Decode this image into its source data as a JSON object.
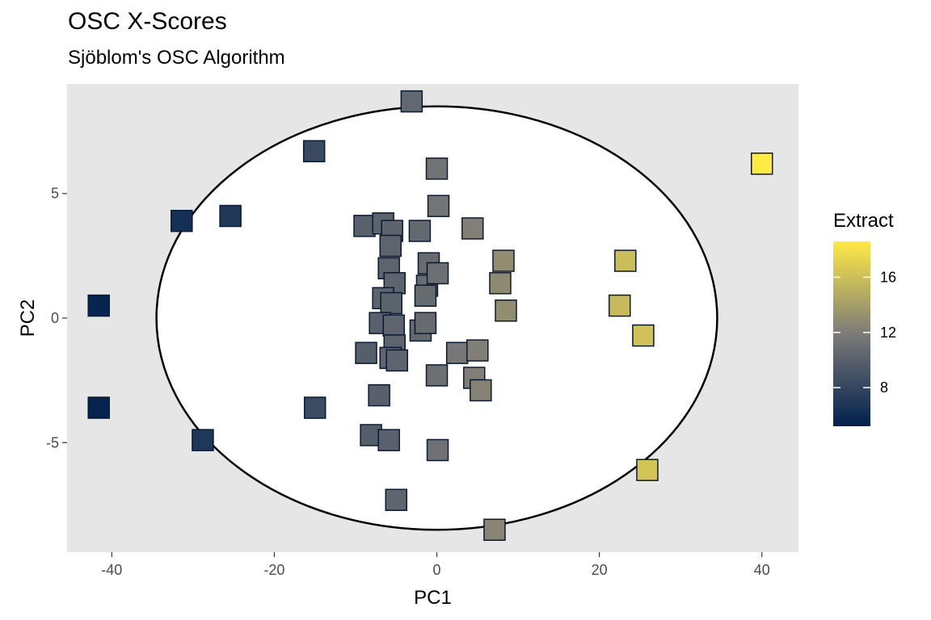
{
  "chart_data": {
    "type": "scatter",
    "title": "OSC X-Scores",
    "subtitle": "Sjöblom's OSC Algorithm",
    "xlabel": "PC1",
    "ylabel": "PC2",
    "xlim": [
      -45.5,
      44.5
    ],
    "ylim": [
      -9.4,
      9.4
    ],
    "x_ticks": [
      -40,
      -20,
      0,
      20,
      40
    ],
    "y_ticks": [
      -5,
      0,
      5
    ],
    "grid": false,
    "panel_background": "#e6e6e6",
    "ellipse": {
      "cx": 0,
      "cy": 0,
      "rx": 34.5,
      "ry": 8.5,
      "fill": "#ffffff",
      "stroke": "#000000"
    },
    "legend": {
      "title": "Extract",
      "position": "right",
      "range": [
        5.2,
        18.6
      ],
      "ticks": [
        8,
        12,
        16
      ],
      "color_low": "#00204d",
      "color_mid": "#7c7b78",
      "color_high": "#ffea46"
    },
    "marker": "square",
    "points": [
      {
        "x": -3.1,
        "y": 8.7,
        "extract": 10.5
      },
      {
        "x": 0.0,
        "y": 6.0,
        "extract": 11.3
      },
      {
        "x": -15.1,
        "y": 6.7,
        "extract": 8.2
      },
      {
        "x": 40.0,
        "y": 6.2,
        "extract": 18.6
      },
      {
        "x": -31.4,
        "y": 3.9,
        "extract": 6.4
      },
      {
        "x": -25.4,
        "y": 4.1,
        "extract": 7.0
      },
      {
        "x": 0.2,
        "y": 4.5,
        "extract": 11.4
      },
      {
        "x": -8.9,
        "y": 3.7,
        "extract": 10.0
      },
      {
        "x": -6.6,
        "y": 3.8,
        "extract": 10.1
      },
      {
        "x": -5.5,
        "y": 3.5,
        "extract": 10.2
      },
      {
        "x": -2.1,
        "y": 3.5,
        "extract": 10.6
      },
      {
        "x": 4.4,
        "y": 3.6,
        "extract": 12.2
      },
      {
        "x": 8.2,
        "y": 2.3,
        "extract": 13.0
      },
      {
        "x": 23.2,
        "y": 2.3,
        "extract": 15.9
      },
      {
        "x": -5.7,
        "y": 2.9,
        "extract": 10.2
      },
      {
        "x": -5.9,
        "y": 2.0,
        "extract": 10.2
      },
      {
        "x": -5.2,
        "y": 1.4,
        "extract": 10.2
      },
      {
        "x": -1.0,
        "y": 2.2,
        "extract": 10.8
      },
      {
        "x": -1.2,
        "y": 1.3,
        "extract": 10.8
      },
      {
        "x": 0.1,
        "y": 1.8,
        "extract": 11.1
      },
      {
        "x": 7.8,
        "y": 1.4,
        "extract": 12.8
      },
      {
        "x": 22.5,
        "y": 0.5,
        "extract": 15.7
      },
      {
        "x": 8.5,
        "y": 0.3,
        "extract": 13.0
      },
      {
        "x": -6.6,
        "y": 0.8,
        "extract": 10.1
      },
      {
        "x": -5.6,
        "y": 0.6,
        "extract": 10.1
      },
      {
        "x": -1.4,
        "y": 0.9,
        "extract": 10.7
      },
      {
        "x": 25.4,
        "y": -0.7,
        "extract": 16.2
      },
      {
        "x": -41.6,
        "y": 0.5,
        "extract": 5.6
      },
      {
        "x": -7.0,
        "y": -0.2,
        "extract": 10.0
      },
      {
        "x": -5.3,
        "y": -0.3,
        "extract": 10.2
      },
      {
        "x": -2.0,
        "y": -0.5,
        "extract": 10.6
      },
      {
        "x": -1.4,
        "y": -0.2,
        "extract": 10.7
      },
      {
        "x": -8.7,
        "y": -1.4,
        "extract": 9.8
      },
      {
        "x": -5.2,
        "y": -1.1,
        "extract": 10.2
      },
      {
        "x": -5.7,
        "y": -1.6,
        "extract": 10.2
      },
      {
        "x": -4.9,
        "y": -1.7,
        "extract": 10.2
      },
      {
        "x": 2.5,
        "y": -1.4,
        "extract": 11.6
      },
      {
        "x": 5.0,
        "y": -1.3,
        "extract": 12.2
      },
      {
        "x": 0.0,
        "y": -2.3,
        "extract": 11.1
      },
      {
        "x": 4.6,
        "y": -2.4,
        "extract": 12.1
      },
      {
        "x": 5.4,
        "y": -2.9,
        "extract": 12.3
      },
      {
        "x": -7.1,
        "y": -3.1,
        "extract": 9.9
      },
      {
        "x": -41.6,
        "y": -3.6,
        "extract": 5.5
      },
      {
        "x": -15.0,
        "y": -3.6,
        "extract": 8.4
      },
      {
        "x": -8.1,
        "y": -4.7,
        "extract": 9.8
      },
      {
        "x": -5.9,
        "y": -4.9,
        "extract": 10.0
      },
      {
        "x": -28.8,
        "y": -4.9,
        "extract": 6.9
      },
      {
        "x": 0.1,
        "y": -5.3,
        "extract": 11.2
      },
      {
        "x": 25.9,
        "y": -6.1,
        "extract": 16.3
      },
      {
        "x": -5.0,
        "y": -7.3,
        "extract": 10.3
      },
      {
        "x": 7.1,
        "y": -8.5,
        "extract": 12.5
      }
    ]
  }
}
